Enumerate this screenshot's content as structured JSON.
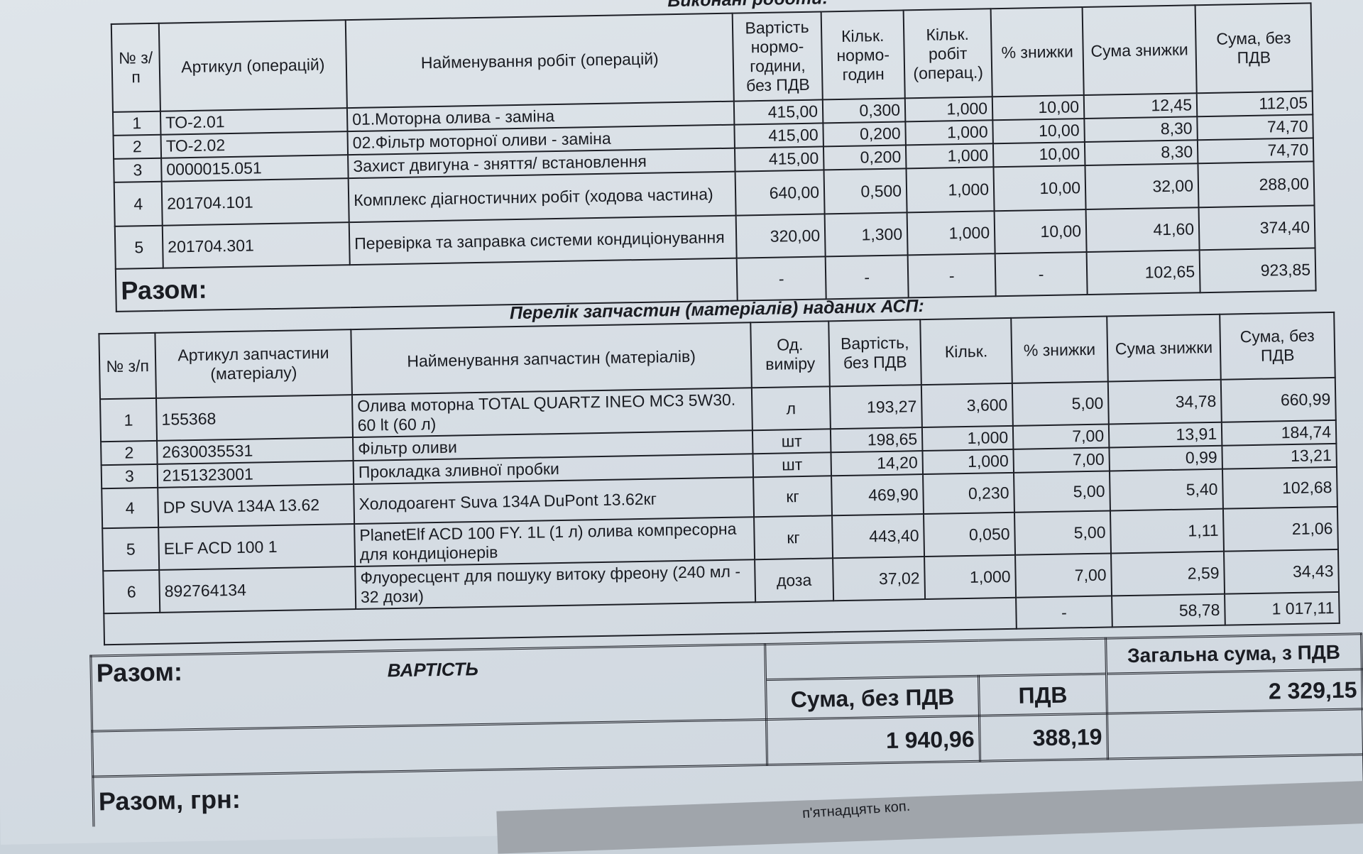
{
  "works": {
    "title": "Виконані роботи:",
    "headers": [
      "№ з/п",
      "Артикул (операцій)",
      "Найменування робіт (операцій)",
      "Вартість нормо-години, без ПДВ",
      "Кільк. нормо-годин",
      "Кільк. робіт (операц.)",
      "% знижки",
      "Сума знижки",
      "Сума, без ПДВ"
    ],
    "rows": [
      {
        "no": "1",
        "code": "ТО-2.01",
        "name": "01.Моторна олива - заміна",
        "price": "415,00",
        "hours": "0,300",
        "qty": "1,000",
        "disc_pct": "10,00",
        "disc_sum": "12,45",
        "sum": "112,05"
      },
      {
        "no": "2",
        "code": "ТО-2.02",
        "name": "02.Фільтр моторної оливи - заміна",
        "price": "415,00",
        "hours": "0,200",
        "qty": "1,000",
        "disc_pct": "10,00",
        "disc_sum": "8,30",
        "sum": "74,70"
      },
      {
        "no": "3",
        "code": "0000015.051",
        "name": "Захист двигуна - зняття/ встановлення",
        "price": "415,00",
        "hours": "0,200",
        "qty": "1,000",
        "disc_pct": "10,00",
        "disc_sum": "8,30",
        "sum": "74,70"
      },
      {
        "no": "4",
        "code": "201704.101",
        "name": "Комплекс діагностичних робіт (ходова частина)",
        "price": "640,00",
        "hours": "0,500",
        "qty": "1,000",
        "disc_pct": "10,00",
        "disc_sum": "32,00",
        "sum": "288,00"
      },
      {
        "no": "5",
        "code": "201704.301",
        "name": "Перевірка та заправка системи кондиціонування",
        "price": "320,00",
        "hours": "1,300",
        "qty": "1,000",
        "disc_pct": "10,00",
        "disc_sum": "41,60",
        "sum": "374,40"
      }
    ],
    "total": {
      "label": "Разом:",
      "price": "-",
      "hours": "-",
      "qty": "-",
      "disc_pct": "-",
      "disc_sum": "102,65",
      "sum": "923,85"
    }
  },
  "parts": {
    "title": "Перелік запчастин (матеріалів) наданих АСП:",
    "headers": [
      "№ з/п",
      "Артикул запчастини (матеріалу)",
      "Найменування запчастин (матеріалів)",
      "Од. виміру",
      "Вартість, без ПДВ",
      "Кільк.",
      "% знижки",
      "Сума знижки",
      "Сума, без ПДВ"
    ],
    "rows": [
      {
        "no": "1",
        "code": "155368",
        "name": "Олива моторна TOTAL QUARTZ INEO MC3 5W30. 60 lt (60 л)",
        "unit": "л",
        "price": "193,27",
        "qty": "3,600",
        "disc_pct": "5,00",
        "disc_sum": "34,78",
        "sum": "660,99"
      },
      {
        "no": "2",
        "code": "2630035531",
        "name": "Фільтр оливи",
        "unit": "шт",
        "price": "198,65",
        "qty": "1,000",
        "disc_pct": "7,00",
        "disc_sum": "13,91",
        "sum": "184,74"
      },
      {
        "no": "3",
        "code": "2151323001",
        "name": "Прокладка зливної пробки",
        "unit": "шт",
        "price": "14,20",
        "qty": "1,000",
        "disc_pct": "7,00",
        "disc_sum": "0,99",
        "sum": "13,21"
      },
      {
        "no": "4",
        "code": "DP SUVA 134A 13.62",
        "name": "Холодоагент Suva 134A DuPont 13.62кг",
        "unit": "кг",
        "price": "469,90",
        "qty": "0,230",
        "disc_pct": "5,00",
        "disc_sum": "5,40",
        "sum": "102,68"
      },
      {
        "no": "5",
        "code": "ELF ACD 100 1",
        "name": "PlanetElf ACD 100 FY. 1L (1 л) олива компресорна для кондиціонерів",
        "unit": "кг",
        "price": "443,40",
        "qty": "0,050",
        "disc_pct": "5,00",
        "disc_sum": "1,11",
        "sum": "21,06"
      },
      {
        "no": "6",
        "code": "892764134",
        "name": "Флуоресцент для пошуку витоку фреону (240 мл - 32 дози)",
        "unit": "доза",
        "price": "37,02",
        "qty": "1,000",
        "disc_pct": "7,00",
        "disc_sum": "2,59",
        "sum": "34,43"
      }
    ],
    "total": {
      "disc_pct": "-",
      "disc_sum": "58,78",
      "sum": "1 017,11"
    }
  },
  "summary": {
    "total_label": "Разом:",
    "cost_label": "ВАРТІСТЬ",
    "headers": [
      "Сума, без ПДВ",
      "ПДВ",
      "Загальна сума, з ПДВ"
    ],
    "values": [
      "1 940,96",
      "388,19",
      "2 329,15"
    ],
    "total_uah_label": "Разом, грн:",
    "words_fragment": "п'ятнадцять коп."
  }
}
